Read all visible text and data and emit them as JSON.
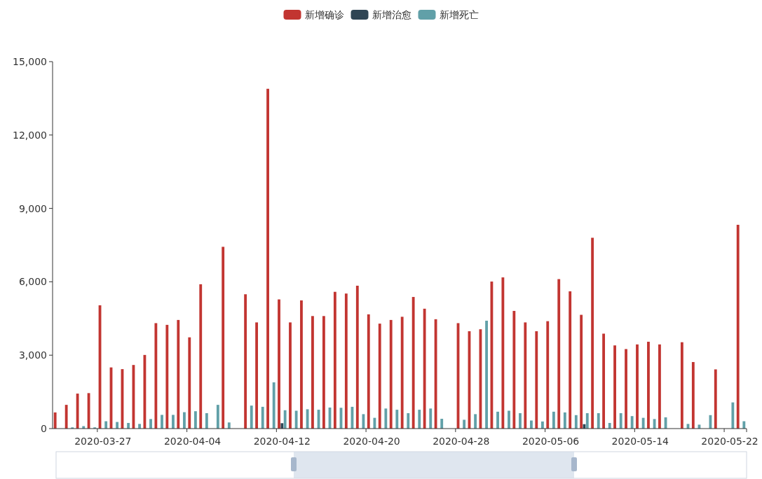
{
  "chart_data": {
    "type": "bar",
    "legend": "top",
    "categories": [
      null,
      null,
      null,
      null,
      "2020-03-27",
      null,
      null,
      null,
      null,
      null,
      null,
      null,
      "2020-04-04",
      null,
      null,
      null,
      null,
      null,
      null,
      null,
      "2020-04-12",
      null,
      null,
      null,
      null,
      null,
      null,
      null,
      "2020-04-20",
      null,
      null,
      null,
      null,
      null,
      null,
      null,
      "2020-04-28",
      null,
      null,
      null,
      null,
      null,
      null,
      null,
      "2020-05-06",
      null,
      null,
      null,
      null,
      null,
      null,
      null,
      "2020-05-14",
      null,
      null,
      null,
      null,
      null,
      null,
      null,
      "2020-05-22",
      null
    ],
    "ylim": [
      0,
      15000
    ],
    "yticks": [
      0,
      {
        "value": 3000,
        "label": "3,000"
      },
      {
        "value": 6000,
        "label": "6,000"
      },
      {
        "value": 9000,
        "label": "9,000"
      },
      {
        "value": 12000,
        "label": "12,000"
      },
      {
        "value": 15000,
        "label": "15,000"
      }
    ],
    "series": [
      {
        "name": "新增确诊",
        "color": "#c23531",
        "values": [
          660,
          970,
          1430,
          1450,
          5040,
          2500,
          2430,
          2600,
          3010,
          4310,
          4240,
          4440,
          3730,
          5900,
          null,
          7430,
          null,
          5490,
          4340,
          13890,
          5280,
          4340,
          5240,
          4600,
          4600,
          5590,
          5520,
          5840,
          4670,
          4290,
          4440,
          4570,
          5380,
          4900,
          4470,
          null,
          4310,
          3980,
          4060,
          6010,
          6180,
          4810,
          4340,
          3980,
          4390,
          6110,
          5610,
          4650,
          7800,
          3880,
          3400,
          3250,
          3440,
          3550,
          3440,
          null,
          3530,
          2720,
          null,
          2420,
          null,
          8330
        ]
      },
      {
        "name": "新增治愈",
        "color": "#2f4554",
        "values": [
          0,
          0,
          0,
          0,
          0,
          0,
          0,
          0,
          0,
          0,
          0,
          0,
          0,
          0,
          0,
          0,
          null,
          0,
          0,
          0,
          220,
          0,
          0,
          0,
          0,
          0,
          0,
          0,
          0,
          0,
          0,
          0,
          0,
          0,
          0,
          null,
          0,
          0,
          0,
          0,
          0,
          0,
          0,
          0,
          0,
          0,
          0,
          180,
          0,
          0,
          0,
          0,
          0,
          0,
          0,
          null,
          0,
          0,
          0,
          0,
          0,
          0
        ]
      },
      {
        "name": "新增死亡",
        "color": "#61a0a8",
        "values": [
          null,
          50,
          100,
          50,
          300,
          270,
          230,
          190,
          390,
          560,
          560,
          670,
          710,
          630,
          970,
          250,
          null,
          940,
          890,
          1890,
          750,
          730,
          790,
          770,
          860,
          850,
          890,
          590,
          440,
          820,
          770,
          630,
          770,
          820,
          400,
          null,
          360,
          590,
          4410,
          690,
          730,
          630,
          330,
          290,
          690,
          660,
          550,
          630,
          630,
          230,
          630,
          510,
          440,
          390,
          460,
          null,
          190,
          160,
          550,
          null,
          1070,
          300
        ]
      }
    ]
  }
}
